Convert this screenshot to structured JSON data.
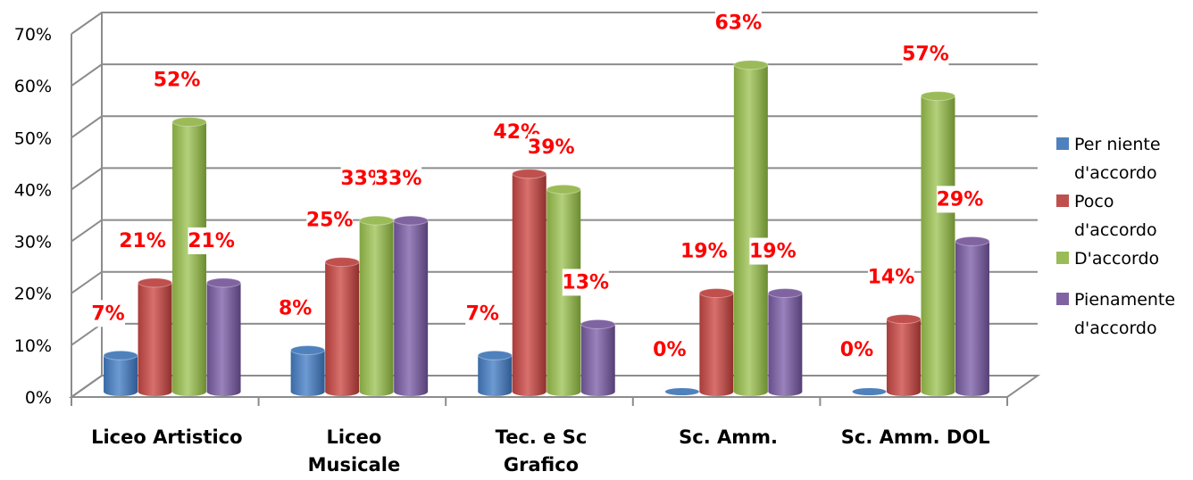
{
  "chart_data": {
    "type": "bar",
    "title": "",
    "xlabel": "",
    "ylabel": "",
    "ylim": [
      0,
      70
    ],
    "y_ticks": [
      "0%",
      "10%",
      "20%",
      "30%",
      "40%",
      "50%",
      "60%",
      "70%"
    ],
    "categories": [
      "Liceo Artistico",
      "Liceo Musicale",
      "Tec.  e Sc Grafico",
      "Sc. Amm.",
      "Sc. Amm. DOL"
    ],
    "category_lines": [
      [
        "Liceo Artistico"
      ],
      [
        "Liceo",
        "Musicale"
      ],
      [
        "Tec.  e Sc",
        "Grafico"
      ],
      [
        "Sc. Amm."
      ],
      [
        "Sc. Amm. DOL"
      ]
    ],
    "series": [
      {
        "name": "Per niente d'accordo",
        "color": "#4f81bd",
        "values": [
          7,
          8,
          7,
          0,
          0
        ],
        "labels": [
          "7%",
          "8%",
          "7%",
          "0%",
          "0%"
        ]
      },
      {
        "name": "Poco d'accordo",
        "color": "#c0504d",
        "values": [
          21,
          25,
          42,
          19,
          14
        ],
        "labels": [
          "21%",
          "25%",
          "42%",
          "19%",
          "14%"
        ]
      },
      {
        "name": "D'accordo",
        "color": "#9bbb59",
        "values": [
          52,
          33,
          39,
          63,
          57
        ],
        "labels": [
          "52%",
          "33%",
          "39%",
          "63%",
          "57%"
        ]
      },
      {
        "name": "Pienamente d'accordo",
        "color": "#8064a2",
        "values": [
          21,
          33,
          13,
          19,
          29
        ],
        "labels": [
          "21%",
          "33%",
          "13%",
          "19%",
          "29%"
        ]
      }
    ],
    "legend_position": "right",
    "grid": true,
    "data_label_color": "#ff0000"
  },
  "legend": {
    "items": [
      {
        "lines": [
          "Per niente",
          "d'accordo"
        ],
        "color": "#4f81bd"
      },
      {
        "lines": [
          "Poco",
          "d'accordo"
        ],
        "color": "#c0504d"
      },
      {
        "lines": [
          "D'accordo"
        ],
        "color": "#9bbb59"
      },
      {
        "lines": [
          "Pienamente",
          "d'accordo"
        ],
        "color": "#8064a2"
      }
    ]
  }
}
